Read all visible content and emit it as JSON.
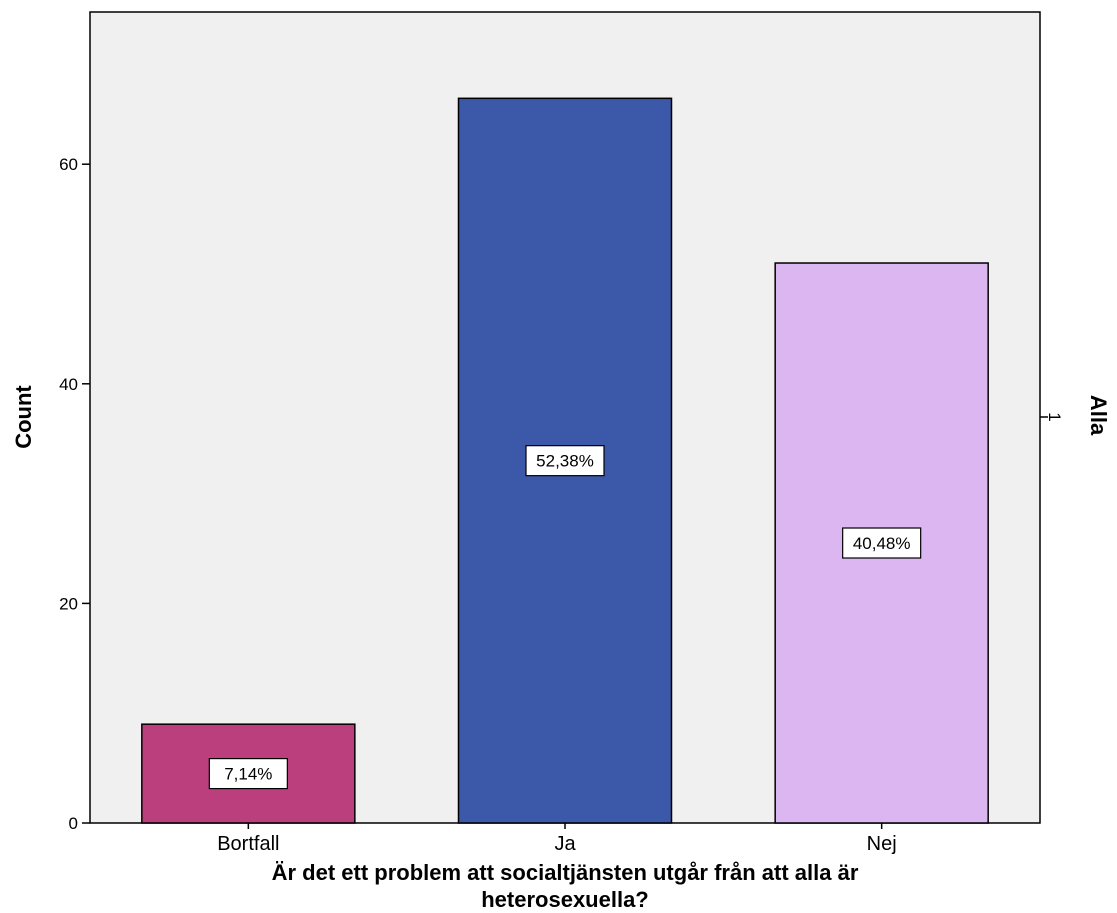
{
  "chart_data": {
    "type": "bar",
    "categories": [
      "Bortfall",
      "Ja",
      "Nej"
    ],
    "values": [
      9,
      66,
      51
    ],
    "data_labels": [
      "7,14%",
      "52,38%",
      "40,48%"
    ],
    "colors": [
      "#bb3f7d",
      "#3c58a8",
      "#dcb6f0"
    ],
    "background": "#f0f0f0",
    "xlabel_lines": [
      "Är det ett problem att socialtjänsten utgår från att alla är",
      "heterosexuella?"
    ],
    "ylabel": "Count",
    "panel_label": "Alla",
    "panel_value": "1",
    "yticks": [
      0,
      20,
      40,
      60
    ],
    "ylim": [
      0,
      71
    ],
    "grid": false,
    "legend": "none"
  }
}
